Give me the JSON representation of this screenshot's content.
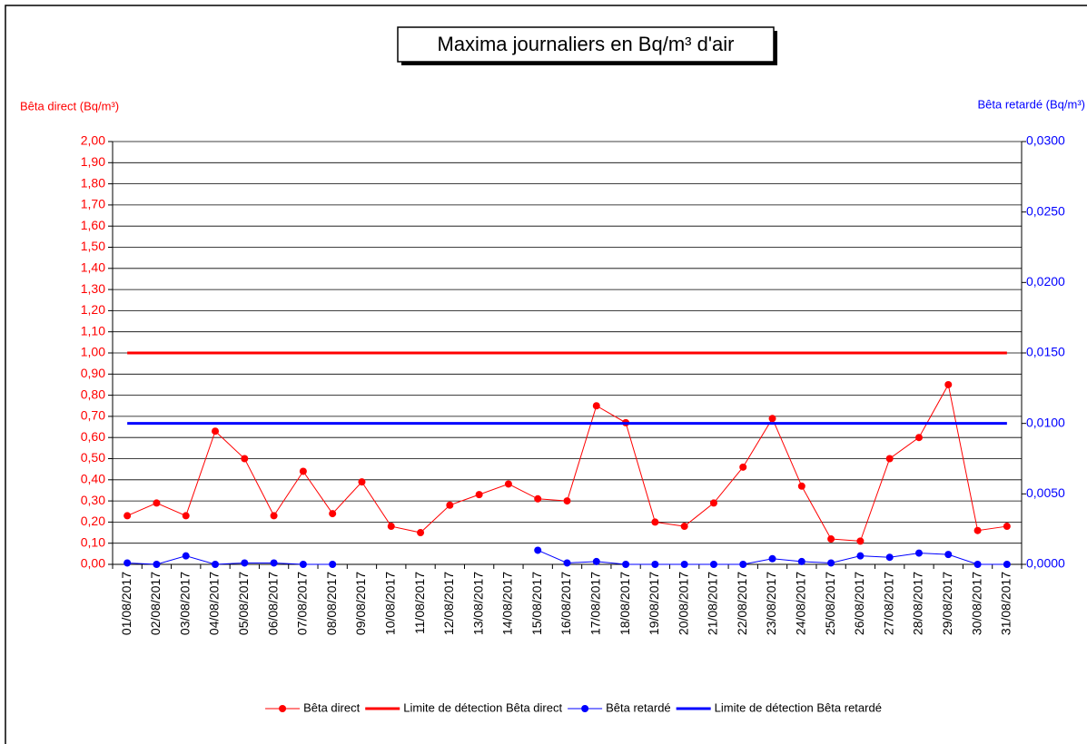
{
  "chart_data": {
    "type": "line",
    "title": "Maxima journaliers en Bq/m³ d'air",
    "y_label": "Bêta direct (Bq/m³)",
    "y2_label": "Bêta retardé (Bq/m³)",
    "categories": [
      "01/08/2017",
      "02/08/2017",
      "03/08/2017",
      "04/08/2017",
      "05/08/2017",
      "06/08/2017",
      "07/08/2017",
      "08/08/2017",
      "09/08/2017",
      "10/08/2017",
      "11/08/2017",
      "12/08/2017",
      "13/08/2017",
      "14/08/2017",
      "15/08/2017",
      "16/08/2017",
      "17/08/2017",
      "18/08/2017",
      "19/08/2017",
      "20/08/2017",
      "21/08/2017",
      "22/08/2017",
      "23/08/2017",
      "24/08/2017",
      "25/08/2017",
      "26/08/2017",
      "27/08/2017",
      "28/08/2017",
      "29/08/2017",
      "30/08/2017",
      "31/08/2017"
    ],
    "series": [
      {
        "name": "Bêta direct",
        "color": "#ff0000",
        "axis": "y",
        "marker": true,
        "line_width": 1,
        "values": [
          0.23,
          0.29,
          0.23,
          0.63,
          0.5,
          0.23,
          0.44,
          0.24,
          0.39,
          0.18,
          0.15,
          0.28,
          0.33,
          0.38,
          0.31,
          0.3,
          0.75,
          0.67,
          0.2,
          0.18,
          0.29,
          0.46,
          0.69,
          0.37,
          0.12,
          0.11,
          0.5,
          0.6,
          0.85,
          0.16,
          0.18
        ]
      },
      {
        "name": "Limite de détection Bêta direct",
        "color": "#ff0000",
        "axis": "y",
        "marker": false,
        "line_width": 3,
        "values": [
          1,
          1,
          1,
          1,
          1,
          1,
          1,
          1,
          1,
          1,
          1,
          1,
          1,
          1,
          1,
          1,
          1,
          1,
          1,
          1,
          1,
          1,
          1,
          1,
          1,
          1,
          1,
          1,
          1,
          1,
          1
        ]
      },
      {
        "name": "Bêta retardé",
        "color": "#0000ff",
        "axis": "y2",
        "marker": true,
        "line_width": 1,
        "values": [
          0.0001,
          0,
          0.0006,
          0,
          0.0001,
          0.0001,
          0,
          0,
          null,
          null,
          null,
          null,
          null,
          null,
          0.001,
          0.0001,
          0.0002,
          0,
          0,
          0,
          0,
          0,
          0.0004,
          0.0002,
          0.0001,
          0.0006,
          0.0005,
          0.0008,
          0.0007,
          0,
          0
        ]
      },
      {
        "name": "Limite de détection Bêta retardé",
        "color": "#0000ff",
        "axis": "y2",
        "marker": false,
        "line_width": 3,
        "values": [
          0.01,
          0.01,
          0.01,
          0.01,
          0.01,
          0.01,
          0.01,
          0.01,
          0.01,
          0.01,
          0.01,
          0.01,
          0.01,
          0.01,
          0.01,
          0.01,
          0.01,
          0.01,
          0.01,
          0.01,
          0.01,
          0.01,
          0.01,
          0.01,
          0.01,
          0.01,
          0.01,
          0.01,
          0.01,
          0.01,
          0.01
        ]
      }
    ],
    "ylim": [
      0,
      2
    ],
    "yticks": [
      {
        "value": 0,
        "label": "0,00"
      },
      {
        "value": 0.1,
        "label": "0,10"
      },
      {
        "value": 0.2,
        "label": "0,20"
      },
      {
        "value": 0.3,
        "label": "0,30"
      },
      {
        "value": 0.4,
        "label": "0,40"
      },
      {
        "value": 0.5,
        "label": "0,50"
      },
      {
        "value": 0.6,
        "label": "0,60"
      },
      {
        "value": 0.7,
        "label": "0,70"
      },
      {
        "value": 0.8,
        "label": "0,80"
      },
      {
        "value": 0.9,
        "label": "0,90"
      },
      {
        "value": 1,
        "label": "1,00"
      },
      {
        "value": 1.1,
        "label": "1,10"
      },
      {
        "value": 1.2,
        "label": "1,20"
      },
      {
        "value": 1.3,
        "label": "1,30"
      },
      {
        "value": 1.4,
        "label": "1,40"
      },
      {
        "value": 1.5,
        "label": "1,50"
      },
      {
        "value": 1.6,
        "label": "1,60"
      },
      {
        "value": 1.7,
        "label": "1,70"
      },
      {
        "value": 1.8,
        "label": "1,80"
      },
      {
        "value": 1.9,
        "label": "1,90"
      },
      {
        "value": 2,
        "label": "2,00"
      }
    ],
    "y2lim": [
      0,
      0.03
    ],
    "y2ticks": [
      {
        "value": 0,
        "label": "0,0000"
      },
      {
        "value": 0.005,
        "label": "0,0050"
      },
      {
        "value": 0.01,
        "label": "0,0100"
      },
      {
        "value": 0.015,
        "label": "0,0150"
      },
      {
        "value": 0.02,
        "label": "0,0200"
      },
      {
        "value": 0.025,
        "label": "0,0250"
      },
      {
        "value": 0.03,
        "label": "0,0300"
      }
    ],
    "grid": true,
    "legend": "bottom"
  }
}
